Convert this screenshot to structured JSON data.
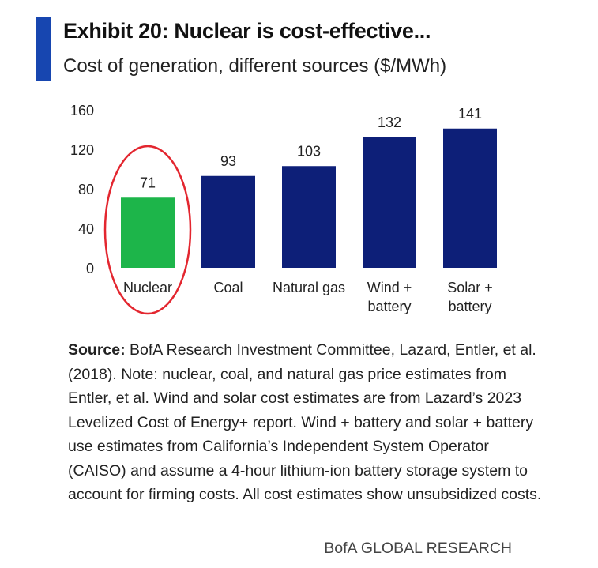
{
  "header": {
    "title": "Exhibit 20: Nuclear is cost-effective...",
    "subtitle": "Cost of generation, different sources ($/MWh)",
    "accent_color": "#1746b0"
  },
  "chart_data": {
    "type": "bar",
    "categories": [
      [
        "Nuclear"
      ],
      [
        "Coal"
      ],
      [
        "Natural gas"
      ],
      [
        "Wind +",
        "battery"
      ],
      [
        "Solar +",
        "battery"
      ]
    ],
    "values": [
      71,
      93,
      103,
      132,
      141
    ],
    "data_labels": [
      "71",
      "93",
      "103",
      "132",
      "141"
    ],
    "yticks": [
      0,
      40,
      80,
      120,
      160
    ],
    "ylim": [
      0,
      160
    ],
    "colors": [
      "#1db54a",
      "#0d1f78",
      "#0d1f78",
      "#0d1f78",
      "#0d1f78"
    ],
    "highlight": {
      "category": "Nuclear",
      "shape": "ellipse",
      "color": "#e3262f"
    },
    "grid": false,
    "legend": "none"
  },
  "footer": {
    "source_label": "Source:",
    "source_text": " BofA Research Investment Committee, Lazard, Entler, et al. (2018). Note: nuclear, coal, and natural gas price estimates from Entler, et al. Wind and solar cost estimates are from Lazard’s 2023 Levelized Cost of Energy+ report. Wind + battery and solar + battery use estimates from California’s Independent System Operator (CAISO) and assume a 4-hour lithium-ion battery storage system to account for firming costs. All cost estimates show unsubsidized costs.",
    "brand": "BofA GLOBAL RESEARCH"
  }
}
